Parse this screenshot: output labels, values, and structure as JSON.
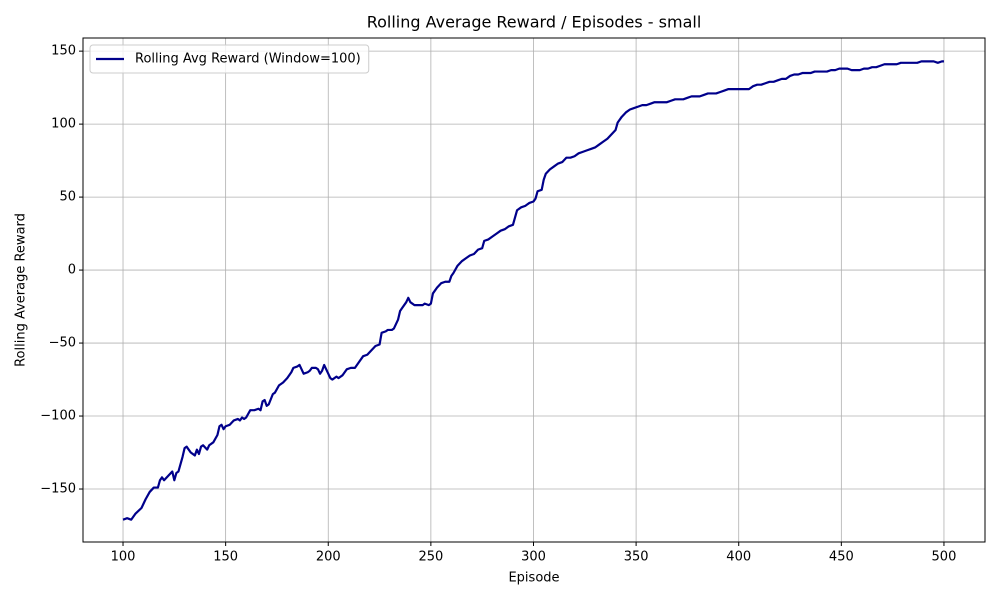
{
  "chart_data": {
    "type": "line",
    "title": "Rolling Average Reward / Episodes - small",
    "x_label": "Episode",
    "y_label": "Rolling Average Reward",
    "x": [
      100,
      102,
      104,
      106,
      109,
      111,
      113,
      115,
      117,
      118,
      119,
      120,
      122,
      124,
      125,
      126,
      127,
      129,
      130,
      131,
      133,
      135,
      136,
      137,
      138,
      139,
      141,
      142,
      144,
      146,
      147,
      148,
      149,
      150,
      152,
      154,
      156,
      157,
      158,
      159,
      160,
      162,
      164,
      166,
      167,
      168,
      169,
      170,
      171,
      173,
      174,
      176,
      178,
      180,
      182,
      183,
      185,
      186,
      188,
      190,
      191,
      192,
      194,
      195,
      196,
      197,
      198,
      199,
      201,
      202,
      204,
      205,
      207,
      209,
      211,
      213,
      215,
      217,
      219,
      221,
      223,
      225,
      226,
      228,
      229,
      231,
      232,
      234,
      235,
      236,
      238,
      239,
      240,
      242,
      244,
      246,
      247,
      249,
      250,
      251,
      253,
      255,
      257,
      259,
      260,
      261,
      263,
      265,
      267,
      269,
      271,
      273,
      275,
      276,
      278,
      280,
      282,
      284,
      286,
      288,
      290,
      292,
      294,
      296,
      297,
      298,
      300,
      301,
      302,
      304,
      305,
      306,
      308,
      310,
      312,
      314,
      316,
      318,
      320,
      322,
      324,
      326,
      328,
      330,
      332,
      334,
      336,
      338,
      340,
      341,
      343,
      345,
      347,
      349,
      351,
      353,
      355,
      357,
      359,
      361,
      363,
      365,
      367,
      369,
      371,
      373,
      375,
      377,
      379,
      381,
      383,
      385,
      387,
      389,
      391,
      393,
      395,
      397,
      399,
      401,
      403,
      405,
      407,
      409,
      411,
      413,
      415,
      417,
      419,
      421,
      423,
      425,
      427,
      429,
      431,
      433,
      435,
      437,
      439,
      441,
      443,
      445,
      447,
      449,
      451,
      453,
      455,
      457,
      459,
      461,
      463,
      465,
      467,
      469,
      471,
      473,
      475,
      477,
      479,
      481,
      483,
      485,
      487,
      489,
      491,
      493,
      495,
      497,
      499,
      500
    ],
    "series": [
      {
        "name": "Rolling Avg Reward (Window=100)",
        "color": "#00008b",
        "values": [
          -171,
          -170,
          -171,
          -167,
          -163,
          -157,
          -152,
          -149,
          -149,
          -144,
          -142,
          -144,
          -141,
          -138,
          -144,
          -139,
          -138,
          -128,
          -122,
          -121,
          -125,
          -127,
          -123,
          -126,
          -121,
          -120,
          -123,
          -120,
          -118,
          -113,
          -107,
          -106,
          -109,
          -107,
          -106,
          -103,
          -102,
          -103,
          -101,
          -102,
          -101,
          -96,
          -96,
          -95,
          -96,
          -90,
          -89,
          -93,
          -92,
          -85,
          -84,
          -79,
          -77,
          -74,
          -70,
          -67,
          -66,
          -65,
          -71,
          -70,
          -69,
          -67,
          -67,
          -68,
          -71,
          -69,
          -65,
          -68,
          -74,
          -75,
          -73,
          -74,
          -72,
          -68,
          -67,
          -67,
          -63,
          -59,
          -58,
          -55,
          -52,
          -51,
          -43,
          -42,
          -41,
          -41,
          -40,
          -34,
          -28,
          -26,
          -22,
          -19,
          -22,
          -24,
          -24,
          -24,
          -23,
          -24,
          -23,
          -16,
          -12,
          -9,
          -8,
          -8,
          -4,
          -2,
          3,
          6,
          8,
          10,
          11,
          14,
          15,
          20,
          21,
          23,
          25,
          27,
          28,
          30,
          31,
          41,
          43,
          44,
          45,
          46,
          47,
          49,
          54,
          55,
          62,
          66,
          69,
          71,
          73,
          74,
          77,
          77,
          78,
          80,
          81,
          82,
          83,
          84,
          86,
          88,
          90,
          93,
          96,
          101,
          105,
          108,
          110,
          111,
          112,
          113,
          113,
          114,
          115,
          115,
          115,
          115,
          116,
          117,
          117,
          117,
          118,
          119,
          119,
          119,
          120,
          121,
          121,
          121,
          122,
          123,
          124,
          124,
          124,
          124,
          124,
          124,
          126,
          127,
          127,
          128,
          129,
          129,
          130,
          131,
          131,
          133,
          134,
          134,
          135,
          135,
          135,
          136,
          136,
          136,
          136,
          137,
          137,
          138,
          138,
          138,
          137,
          137,
          137,
          138,
          138,
          139,
          139,
          140,
          141,
          141,
          141,
          141,
          142,
          142,
          142,
          142,
          142,
          143,
          143,
          143,
          143,
          142,
          143,
          143
        ]
      }
    ],
    "xlim": [
      80.5,
      520
    ],
    "ylim": [
      -186.3,
      159
    ],
    "xticks": [
      100,
      150,
      200,
      250,
      300,
      350,
      400,
      450,
      500
    ],
    "yticks": [
      {
        "value": -150,
        "label": "−150"
      },
      {
        "value": -100,
        "label": "−100"
      },
      {
        "value": -50,
        "label": "−50"
      },
      0,
      50,
      100,
      150
    ],
    "grid": true,
    "legend": "upper-left"
  }
}
